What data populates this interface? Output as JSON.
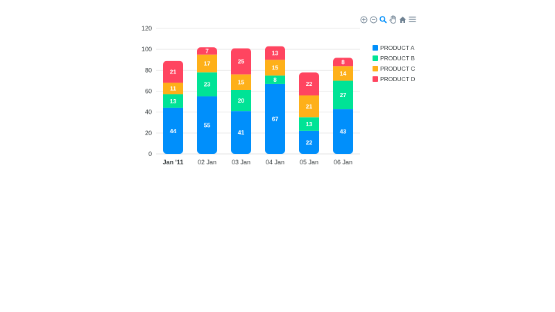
{
  "chart_data": {
    "type": "bar",
    "stacked": true,
    "categories": [
      "Jan '11",
      "02 Jan",
      "03 Jan",
      "04 Jan",
      "05 Jan",
      "06 Jan"
    ],
    "series": [
      {
        "name": "PRODUCT A",
        "color": "#008ffb",
        "values": [
          44,
          55,
          41,
          67,
          22,
          43
        ]
      },
      {
        "name": "PRODUCT B",
        "color": "#00e396",
        "values": [
          13,
          23,
          20,
          8,
          13,
          27
        ]
      },
      {
        "name": "PRODUCT C",
        "color": "#feb019",
        "values": [
          11,
          17,
          15,
          15,
          21,
          14
        ]
      },
      {
        "name": "PRODUCT D",
        "color": "#ff4560",
        "values": [
          21,
          7,
          25,
          13,
          22,
          8
        ]
      }
    ],
    "y_ticks": [
      "0",
      "20",
      "40",
      "60",
      "80",
      "100",
      "120"
    ],
    "ylim": [
      0,
      120
    ],
    "grid": true,
    "legend_position": "right",
    "title": "",
    "xlabel": "",
    "ylabel": ""
  },
  "toolbar": {
    "icons": [
      "zoom-in-icon",
      "zoom-out-icon",
      "zoom-select-icon",
      "pan-icon",
      "home-icon",
      "menu-icon"
    ],
    "active_color": "#008ffb",
    "icon_color": "#6e8192"
  }
}
